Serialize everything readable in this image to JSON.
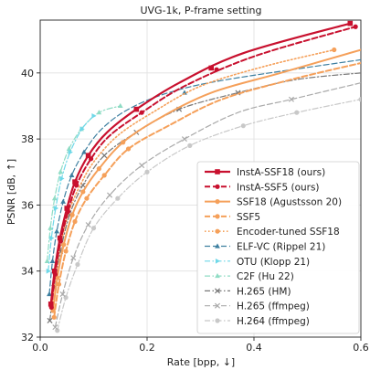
{
  "chart_data": {
    "type": "line",
    "title": "UVG-1k, P-frame setting",
    "xlabel": "Rate [bpp, ↓]",
    "ylabel": "PSNR [dB, ↑]",
    "xlim": [
      0,
      0.6
    ],
    "ylim": [
      32,
      41.6
    ],
    "xticks": [
      0,
      0.2,
      0.4,
      0.6
    ],
    "xtick_labels": [
      "0.0",
      "0.2",
      "0.4",
      "0.6"
    ],
    "yticks": [
      32,
      34,
      36,
      38,
      40
    ],
    "ytick_labels": [
      "32",
      "34",
      "36",
      "38",
      "40"
    ],
    "grid": true,
    "legend_position": "lower-right",
    "series": [
      {
        "name": "InstA-SSF18 (ours)",
        "color": "#c8102e",
        "dash": "solid",
        "marker": "square",
        "linewidth": 2.2,
        "points": [
          [
            0.02,
            33.0
          ],
          [
            0.027,
            34.0
          ],
          [
            0.037,
            35.0
          ],
          [
            0.05,
            35.9
          ],
          [
            0.065,
            36.7
          ],
          [
            0.09,
            37.5
          ],
          [
            0.125,
            38.2
          ],
          [
            0.18,
            38.9
          ],
          [
            0.26,
            39.7
          ],
          [
            0.38,
            40.6
          ],
          [
            0.58,
            41.5
          ]
        ],
        "markers": [
          [
            0.02,
            33.0
          ],
          [
            0.027,
            34.0
          ],
          [
            0.037,
            35.0
          ],
          [
            0.05,
            35.9
          ],
          [
            0.065,
            36.7
          ],
          [
            0.09,
            37.5
          ],
          [
            0.18,
            38.9
          ],
          [
            0.32,
            40.15
          ],
          [
            0.58,
            41.5
          ]
        ]
      },
      {
        "name": "InstA-SSF5 (ours)",
        "color": "#c8102e",
        "dash": "dashed",
        "marker": "circle",
        "linewidth": 2.0,
        "points": [
          [
            0.021,
            32.9
          ],
          [
            0.028,
            33.9
          ],
          [
            0.038,
            34.9
          ],
          [
            0.052,
            35.8
          ],
          [
            0.068,
            36.6
          ],
          [
            0.095,
            37.4
          ],
          [
            0.13,
            38.1
          ],
          [
            0.19,
            38.8
          ],
          [
            0.27,
            39.6
          ],
          [
            0.4,
            40.5
          ],
          [
            0.59,
            41.4
          ]
        ],
        "markers": [
          [
            0.021,
            32.9
          ],
          [
            0.028,
            33.9
          ],
          [
            0.038,
            34.9
          ],
          [
            0.052,
            35.8
          ],
          [
            0.068,
            36.6
          ],
          [
            0.095,
            37.4
          ],
          [
            0.19,
            38.8
          ],
          [
            0.33,
            40.1
          ],
          [
            0.59,
            41.4
          ]
        ]
      },
      {
        "name": "SSF18 (Agustsson 20)",
        "color": "#f5a05a",
        "dash": "solid",
        "marker": "circle",
        "linewidth": 2.0,
        "points": [
          [
            0.024,
            32.8
          ],
          [
            0.032,
            33.8
          ],
          [
            0.044,
            34.8
          ],
          [
            0.06,
            35.7
          ],
          [
            0.08,
            36.4
          ],
          [
            0.11,
            37.1
          ],
          [
            0.155,
            37.9
          ],
          [
            0.22,
            38.6
          ],
          [
            0.32,
            39.4
          ],
          [
            0.45,
            40.0
          ],
          [
            0.6,
            40.7
          ]
        ],
        "markers": [
          [
            0.024,
            32.8
          ],
          [
            0.032,
            33.8
          ],
          [
            0.044,
            34.8
          ],
          [
            0.06,
            35.7
          ],
          [
            0.08,
            36.4
          ],
          [
            0.11,
            37.1
          ],
          [
            0.155,
            37.9
          ]
        ]
      },
      {
        "name": "SSF5",
        "color": "#f5a05a",
        "dash": "dashed",
        "marker": "circle",
        "linewidth": 2.0,
        "points": [
          [
            0.026,
            32.6
          ],
          [
            0.035,
            33.6
          ],
          [
            0.048,
            34.6
          ],
          [
            0.065,
            35.5
          ],
          [
            0.087,
            36.2
          ],
          [
            0.12,
            36.9
          ],
          [
            0.165,
            37.7
          ],
          [
            0.24,
            38.4
          ],
          [
            0.34,
            39.2
          ],
          [
            0.47,
            39.8
          ],
          [
            0.6,
            40.3
          ]
        ],
        "markers": [
          [
            0.026,
            32.6
          ],
          [
            0.035,
            33.6
          ],
          [
            0.048,
            34.6
          ],
          [
            0.065,
            35.5
          ],
          [
            0.087,
            36.2
          ],
          [
            0.12,
            36.9
          ],
          [
            0.165,
            37.7
          ]
        ]
      },
      {
        "name": "Encoder-tuned SSF18",
        "color": "#f5a05a",
        "dash": "dotted",
        "marker": "circle",
        "linewidth": 1.6,
        "points": [
          [
            0.022,
            33.0
          ],
          [
            0.03,
            34.0
          ],
          [
            0.041,
            35.0
          ],
          [
            0.056,
            35.9
          ],
          [
            0.075,
            36.6
          ],
          [
            0.1,
            37.3
          ],
          [
            0.145,
            38.1
          ],
          [
            0.21,
            38.8
          ],
          [
            0.3,
            39.6
          ],
          [
            0.42,
            40.2
          ],
          [
            0.55,
            40.7
          ]
        ],
        "markers": [
          [
            0.55,
            40.7
          ]
        ]
      },
      {
        "name": "ELF-VC (Rippel 21)",
        "color": "#3d7fa0",
        "dash": "dashed",
        "marker": "triangle",
        "linewidth": 1.2,
        "points": [
          [
            0.017,
            33.3
          ],
          [
            0.023,
            34.3
          ],
          [
            0.031,
            35.2
          ],
          [
            0.043,
            36.1
          ],
          [
            0.059,
            36.9
          ],
          [
            0.082,
            37.6
          ],
          [
            0.115,
            38.3
          ],
          [
            0.165,
            38.9
          ],
          [
            0.24,
            39.4
          ],
          [
            0.35,
            39.8
          ],
          [
            0.6,
            40.4
          ]
        ],
        "markers": [
          [
            0.017,
            33.3
          ],
          [
            0.023,
            34.3
          ],
          [
            0.031,
            35.2
          ],
          [
            0.043,
            36.1
          ],
          [
            0.059,
            36.9
          ],
          [
            0.082,
            37.6
          ],
          [
            0.27,
            39.4
          ]
        ]
      },
      {
        "name": "OTU (Klopp 21)",
        "color": "#6fd8e8",
        "dash": "dashdot",
        "marker": "triangle-right",
        "linewidth": 1.2,
        "points": [
          [
            0.015,
            34.0
          ],
          [
            0.021,
            35.0
          ],
          [
            0.029,
            35.9
          ],
          [
            0.04,
            36.8
          ],
          [
            0.056,
            37.6
          ],
          [
            0.078,
            38.3
          ],
          [
            0.1,
            38.7
          ]
        ],
        "markers": [
          [
            0.015,
            34.0
          ],
          [
            0.021,
            35.0
          ],
          [
            0.029,
            35.9
          ],
          [
            0.04,
            36.8
          ],
          [
            0.056,
            37.6
          ],
          [
            0.078,
            38.3
          ],
          [
            0.1,
            38.7
          ]
        ]
      },
      {
        "name": "C2F (Hu 22)",
        "color": "#8fdcc4",
        "dash": "dashdot",
        "marker": "triangle",
        "linewidth": 1.2,
        "points": [
          [
            0.013,
            34.3
          ],
          [
            0.019,
            35.3
          ],
          [
            0.027,
            36.2
          ],
          [
            0.038,
            37.0
          ],
          [
            0.054,
            37.7
          ],
          [
            0.077,
            38.3
          ],
          [
            0.11,
            38.8
          ],
          [
            0.15,
            39.0
          ]
        ],
        "markers": [
          [
            0.013,
            34.3
          ],
          [
            0.019,
            35.3
          ],
          [
            0.027,
            36.2
          ],
          [
            0.038,
            37.0
          ],
          [
            0.054,
            37.7
          ],
          [
            0.077,
            38.3
          ],
          [
            0.11,
            38.8
          ],
          [
            0.15,
            39.0
          ]
        ]
      },
      {
        "name": "H.265 (HM)",
        "color": "#777777",
        "dash": "dashdot",
        "marker": "x",
        "linewidth": 1.2,
        "points": [
          [
            0.018,
            32.5
          ],
          [
            0.026,
            33.5
          ],
          [
            0.038,
            34.6
          ],
          [
            0.055,
            35.7
          ],
          [
            0.08,
            36.6
          ],
          [
            0.12,
            37.5
          ],
          [
            0.18,
            38.2
          ],
          [
            0.26,
            38.9
          ],
          [
            0.37,
            39.4
          ],
          [
            0.48,
            39.8
          ],
          [
            0.6,
            40.0
          ]
        ],
        "markers": [
          [
            0.018,
            32.5
          ],
          [
            0.026,
            33.5
          ],
          [
            0.038,
            34.6
          ],
          [
            0.055,
            35.7
          ],
          [
            0.08,
            36.6
          ],
          [
            0.12,
            37.5
          ],
          [
            0.18,
            38.2
          ],
          [
            0.26,
            38.9
          ],
          [
            0.37,
            39.4
          ]
        ]
      },
      {
        "name": "H.265 (ffmpeg)",
        "color": "#aaaaaa",
        "dash": "dashed",
        "marker": "x",
        "linewidth": 1.2,
        "points": [
          [
            0.028,
            32.3
          ],
          [
            0.042,
            33.3
          ],
          [
            0.062,
            34.4
          ],
          [
            0.09,
            35.4
          ],
          [
            0.13,
            36.3
          ],
          [
            0.19,
            37.2
          ],
          [
            0.27,
            38.0
          ],
          [
            0.37,
            38.8
          ],
          [
            0.47,
            39.2
          ],
          [
            0.6,
            39.7
          ]
        ],
        "markers": [
          [
            0.028,
            32.3
          ],
          [
            0.042,
            33.3
          ],
          [
            0.062,
            34.4
          ],
          [
            0.09,
            35.4
          ],
          [
            0.13,
            36.3
          ],
          [
            0.19,
            37.2
          ],
          [
            0.27,
            38.0
          ],
          [
            0.47,
            39.2
          ]
        ]
      },
      {
        "name": "H.264 (ffmpeg)",
        "color": "#c8c8c8",
        "dash": "dashdot",
        "marker": "circle",
        "linewidth": 1.2,
        "points": [
          [
            0.032,
            32.2
          ],
          [
            0.048,
            33.2
          ],
          [
            0.07,
            34.2
          ],
          [
            0.1,
            35.3
          ],
          [
            0.145,
            36.2
          ],
          [
            0.2,
            37.0
          ],
          [
            0.28,
            37.8
          ],
          [
            0.38,
            38.4
          ],
          [
            0.48,
            38.8
          ],
          [
            0.6,
            39.2
          ]
        ],
        "markers": [
          [
            0.032,
            32.2
          ],
          [
            0.048,
            33.2
          ],
          [
            0.07,
            34.2
          ],
          [
            0.1,
            35.3
          ],
          [
            0.145,
            36.2
          ],
          [
            0.2,
            37.0
          ],
          [
            0.28,
            37.8
          ],
          [
            0.38,
            38.4
          ],
          [
            0.48,
            38.8
          ],
          [
            0.6,
            39.2
          ]
        ]
      }
    ]
  }
}
